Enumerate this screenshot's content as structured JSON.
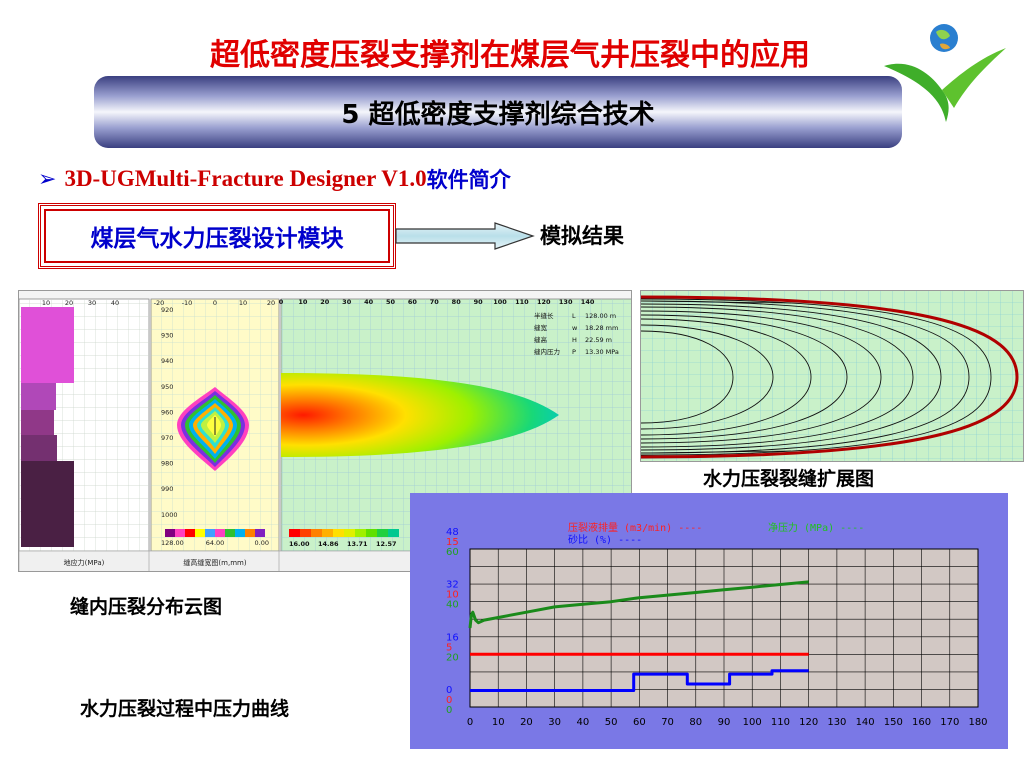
{
  "slide": {
    "title": "超低密度压裂支撑剂在煤层气井压裂中的应用",
    "section_banner": "5  超低密度支撑剂综合技术",
    "bullet": {
      "en": "3D-UGMulti-Fracture Designer V1.0",
      "cn": "软件简介"
    },
    "module_label": "煤层气水力压裂设计模块",
    "result_label": "模拟结果",
    "captions": {
      "fracture_extension": "水力压裂裂缝扩展图",
      "pressure_cloud": "缝内压裂分布云图",
      "pressure_curve": "水力压裂过程中压力曲线"
    }
  },
  "panel_left": {
    "stress_axis_ticks": [
      "10",
      "20",
      "30",
      "40"
    ],
    "stress_label": "地应力(MPa)",
    "width_axis_ticks": [
      "-20",
      "-10",
      "0",
      "10",
      "20"
    ],
    "width_label": "缝高缝宽图(m,mm)",
    "depth_ticks": [
      "920",
      "930",
      "940",
      "950",
      "960",
      "970",
      "980",
      "990",
      "1000"
    ],
    "width_scale_labels": [
      "128.00",
      "64.00",
      "0.00"
    ],
    "length_axis_ticks": [
      "0",
      "10",
      "20",
      "30",
      "40",
      "50",
      "60",
      "70",
      "80",
      "90",
      "100",
      "110",
      "120",
      "130",
      "140"
    ],
    "pressure_scale_labels": [
      "16.00",
      "14.86",
      "13.71",
      "12.57"
    ],
    "params": [
      {
        "name": "半缝长",
        "sym": "L",
        "value": "128.00 m"
      },
      {
        "name": "缝宽",
        "sym": "w",
        "value": "18.28 mm"
      },
      {
        "name": "缝高",
        "sym": "H",
        "value": "22.59 m"
      },
      {
        "name": "缝内压力",
        "sym": "P",
        "value": "13.30 MPa"
      }
    ]
  },
  "chart_data": {
    "type": "line",
    "legend": [
      "压裂液排量 (m3/min) ----",
      "净压力 (MPa) ----",
      "砂比 (%) ----"
    ],
    "x_ticks": [
      "0",
      "10",
      "20",
      "30",
      "40",
      "50",
      "60",
      "70",
      "80",
      "90",
      "100",
      "110",
      "120",
      "130",
      "140",
      "150",
      "160",
      "170",
      "180"
    ],
    "xlim": [
      0,
      180
    ],
    "y_ticks_blue": [
      "48",
      "32",
      "16",
      "0"
    ],
    "y_ticks_red": [
      "15",
      "10",
      "5",
      "0"
    ],
    "y_ticks_green": [
      "60",
      "40",
      "20",
      "0"
    ],
    "series": [
      {
        "name": "压裂液排量 (m3/min)",
        "color": "#ff0000",
        "axis": "red",
        "ylim": [
          0,
          15
        ],
        "x": [
          0,
          120
        ],
        "y": [
          5,
          5
        ]
      },
      {
        "name": "净压力 (MPa)",
        "color": "#1a8a1a",
        "axis": "green",
        "ylim": [
          0,
          60
        ],
        "x": [
          0,
          0.5,
          1,
          2,
          3,
          5,
          10,
          20,
          30,
          40,
          50,
          60,
          70,
          80,
          90,
          100,
          110,
          120
        ],
        "y": [
          30,
          35,
          36,
          33,
          32,
          33,
          34,
          36,
          38,
          39,
          40,
          41.5,
          42.5,
          43.5,
          44.5,
          45.5,
          46.5,
          47.5
        ]
      },
      {
        "name": "砂比 (%)",
        "color": "#0000ff",
        "axis": "blue",
        "ylim": [
          0,
          48
        ],
        "x": [
          0,
          58,
          58,
          77,
          77,
          92,
          92,
          107,
          107,
          120
        ],
        "y": [
          5,
          5,
          10,
          10,
          7,
          7,
          10,
          10,
          11,
          11
        ]
      }
    ],
    "grid": true,
    "background": "#d2c8c4",
    "frame_color": "#7a78e6"
  }
}
